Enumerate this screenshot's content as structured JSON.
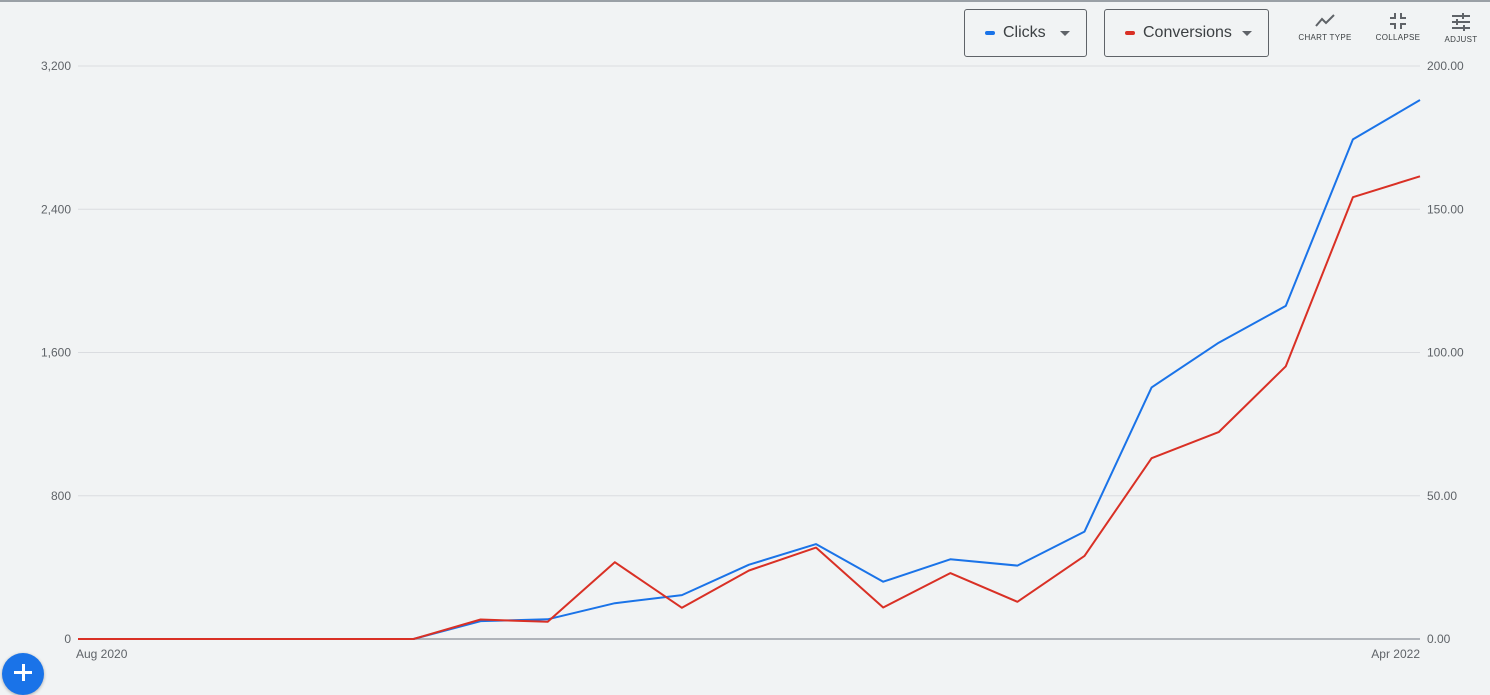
{
  "controls": {
    "metric1": {
      "label": "Clicks",
      "color": "#1a73e8"
    },
    "metric2": {
      "label": "Conversions",
      "color": "#d93025"
    },
    "tools": [
      {
        "label": "CHART TYPE",
        "icon": "line-chart-icon"
      },
      {
        "label": "COLLAPSE",
        "icon": "collapse-icon"
      },
      {
        "label": "ADJUST",
        "icon": "tune-icon"
      }
    ],
    "fab_icon": "plus-icon"
  },
  "chart_data": {
    "type": "line",
    "title": "",
    "x_tick_labels": [
      "Aug 2020",
      "Apr 2022"
    ],
    "left_axis": {
      "ticks": [
        "0",
        "800",
        "1,600",
        "2,400",
        "3,200"
      ],
      "range": [
        0,
        3200
      ]
    },
    "right_axis": {
      "ticks": [
        "0.00",
        "50.00",
        "100.00",
        "150.00",
        "200.00"
      ],
      "range": [
        0,
        200
      ]
    },
    "grid": true,
    "series": [
      {
        "name": "Clicks",
        "axis": "left",
        "color": "#1a73e8",
        "values": [
          0,
          0,
          0,
          0,
          0,
          0,
          100,
          110,
          200,
          245,
          415,
          530,
          320,
          445,
          410,
          600,
          1405,
          1655,
          1860,
          2790,
          3010
        ]
      },
      {
        "name": "Conversions",
        "axis": "right",
        "color": "#d93025",
        "values": [
          0,
          0,
          0,
          0,
          0,
          0,
          6.8,
          6.0,
          26.8,
          10.9,
          23.9,
          31.9,
          11.0,
          23.0,
          13.0,
          29.0,
          63.1,
          72.2,
          95.2,
          154.2,
          161.5
        ]
      }
    ]
  }
}
